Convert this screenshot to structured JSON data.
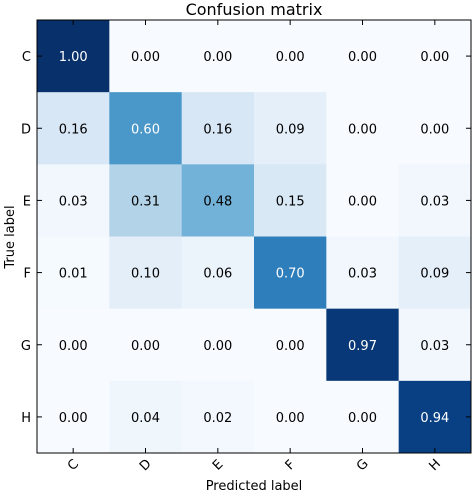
{
  "chart_data": {
    "type": "heatmap",
    "title": "Confusion matrix",
    "xlabel": "Predicted label",
    "ylabel": "True label",
    "x_categories": [
      "C",
      "D",
      "E",
      "F",
      "G",
      "H"
    ],
    "y_categories": [
      "C",
      "D",
      "E",
      "F",
      "G",
      "H"
    ],
    "values": [
      [
        1.0,
        0.0,
        0.0,
        0.0,
        0.0,
        0.0
      ],
      [
        0.16,
        0.6,
        0.16,
        0.09,
        0.0,
        0.0
      ],
      [
        0.03,
        0.31,
        0.48,
        0.15,
        0.0,
        0.03
      ],
      [
        0.01,
        0.1,
        0.06,
        0.7,
        0.03,
        0.09
      ],
      [
        0.0,
        0.0,
        0.0,
        0.0,
        0.97,
        0.03
      ],
      [
        0.0,
        0.04,
        0.02,
        0.0,
        0.0,
        0.94
      ]
    ],
    "value_format_decimals": 2,
    "vrange": [
      0,
      1
    ],
    "colormap": "Blues",
    "grid": false,
    "legend": "none"
  },
  "colors": {
    "low": "#f7fbff",
    "high": "#08306b",
    "text_dark": "#000000",
    "text_light": "#ffffff"
  }
}
